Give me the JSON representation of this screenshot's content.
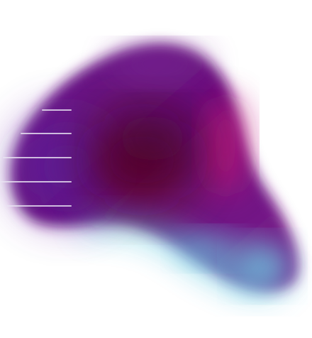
{
  "artwork": {
    "subject": "abstract-gradient-blob",
    "colors": {
      "core": "#5a0018",
      "body": "#6b1280",
      "violet": "#5a1e9e",
      "magenta": "#c0187a",
      "cyan": "#5ec8e0",
      "background": "#ffffff",
      "lines": "#e9e4f3"
    },
    "speed_line_count": 5
  }
}
